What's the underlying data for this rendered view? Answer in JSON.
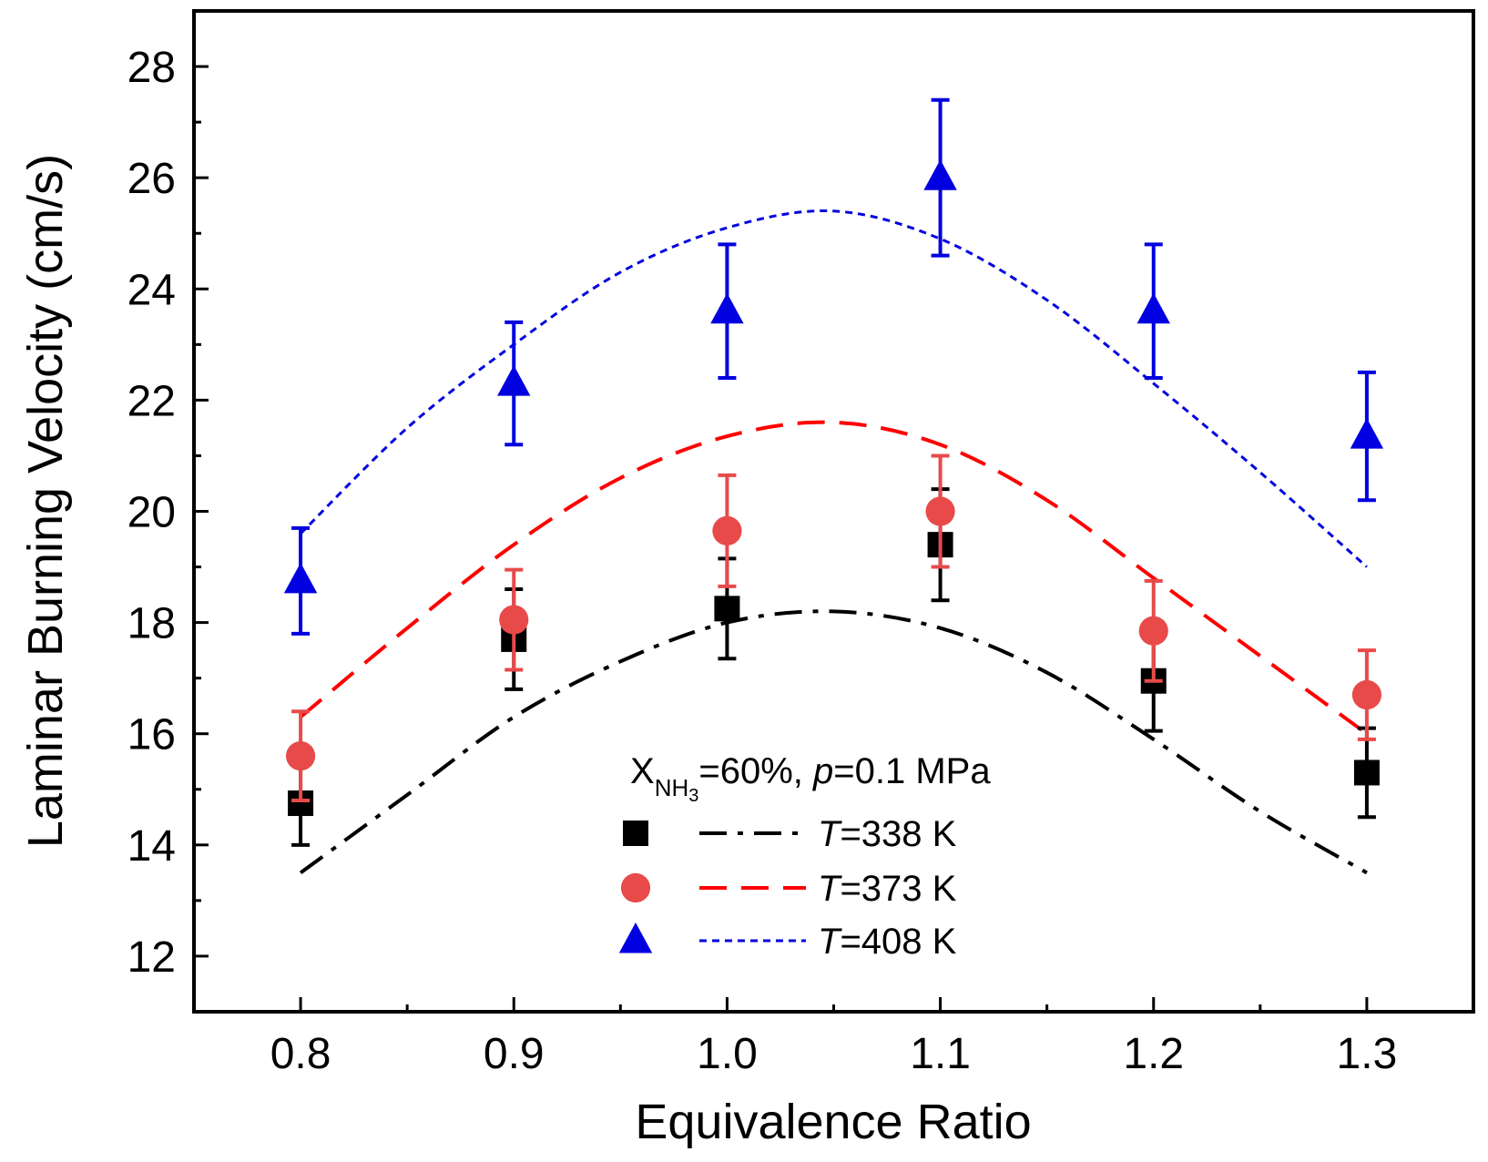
{
  "chart_data": {
    "type": "scatter",
    "xlabel": "Equivalence Ratio",
    "ylabel": "Laminar Burning Velocity (cm/s)",
    "xlim": [
      0.75,
      1.35
    ],
    "ylim": [
      11,
      29
    ],
    "x_ticks": [
      0.8,
      0.9,
      1.0,
      1.1,
      1.2,
      1.3
    ],
    "x_tick_labels": [
      "0.8",
      "0.9",
      "1.0",
      "1.1",
      "1.2",
      "1.3"
    ],
    "y_ticks": [
      12,
      14,
      16,
      18,
      20,
      22,
      24,
      26,
      28
    ],
    "y_tick_labels": [
      "12",
      "14",
      "16",
      "18",
      "20",
      "22",
      "24",
      "26",
      "28"
    ],
    "annotation": {
      "x_symbol": "X",
      "subscript": "NH",
      "subscript2": "3",
      "mid": "=60%, ",
      "p_symbol": "p",
      "rest": "=0.1 MPa"
    },
    "series": [
      {
        "name": "T=338 K",
        "label_italic": "T",
        "label_rest": "=338 K",
        "color": "#000000",
        "marker": "square",
        "line_style": "dash-dot",
        "x": [
          0.8,
          0.9,
          1.0,
          1.1,
          1.2,
          1.3
        ],
        "y": [
          14.75,
          17.7,
          18.25,
          19.4,
          16.95,
          15.3
        ],
        "err": [
          0.75,
          0.9,
          0.9,
          1.0,
          0.9,
          0.8
        ],
        "model_x": [
          0.8,
          0.85,
          0.9,
          0.95,
          1.0,
          1.05,
          1.1,
          1.15,
          1.2,
          1.25,
          1.3
        ],
        "model_y": [
          13.5,
          14.9,
          16.3,
          17.3,
          18.0,
          18.2,
          17.9,
          17.1,
          15.9,
          14.6,
          13.5
        ]
      },
      {
        "name": "T=373 K",
        "label_italic": "T",
        "label_rest": "=373 K",
        "color": "#e84a4a",
        "line_color": "#ff0000",
        "marker": "circle",
        "line_style": "dash",
        "x": [
          0.8,
          0.9,
          1.0,
          1.1,
          1.2,
          1.3
        ],
        "y": [
          15.6,
          18.05,
          19.65,
          20.0,
          17.85,
          16.7
        ],
        "err": [
          0.8,
          0.9,
          1.0,
          1.0,
          0.9,
          0.8
        ],
        "model_x": [
          0.8,
          0.85,
          0.9,
          0.95,
          1.0,
          1.05,
          1.1,
          1.15,
          1.2,
          1.25,
          1.3
        ],
        "model_y": [
          16.3,
          17.9,
          19.4,
          20.6,
          21.35,
          21.6,
          21.2,
          20.2,
          18.8,
          17.4,
          16.0
        ]
      },
      {
        "name": "T=408 K",
        "label_italic": "T",
        "label_rest": "=408 K",
        "color": "#0000e0",
        "marker": "triangle",
        "line_style": "dot",
        "x": [
          0.8,
          0.9,
          1.0,
          1.1,
          1.2,
          1.3
        ],
        "y": [
          18.75,
          22.3,
          23.6,
          26.0,
          23.6,
          21.35
        ],
        "err": [
          0.95,
          1.1,
          1.2,
          1.4,
          1.2,
          1.15
        ],
        "model_x": [
          0.8,
          0.85,
          0.9,
          0.95,
          1.0,
          1.05,
          1.1,
          1.15,
          1.2,
          1.25,
          1.3
        ],
        "model_y": [
          19.6,
          21.5,
          23.0,
          24.3,
          25.1,
          25.4,
          24.9,
          23.8,
          22.3,
          20.7,
          19.0
        ]
      }
    ]
  }
}
